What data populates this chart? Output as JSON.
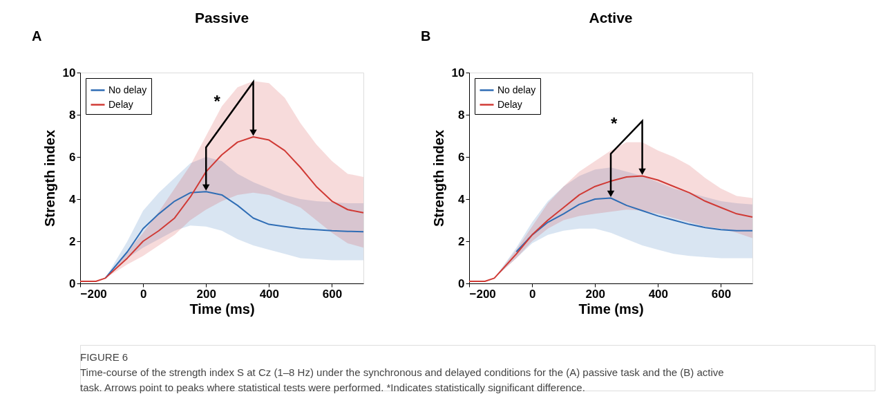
{
  "chart_data": [
    {
      "type": "line",
      "title": "Passive",
      "xlabel": "Time (ms)",
      "ylabel": "Strength index",
      "xlim": [
        -200,
        700
      ],
      "ylim": [
        0,
        10
      ],
      "xticks": [
        -200,
        0,
        200,
        400,
        600
      ],
      "yticks": [
        0,
        2,
        4,
        6,
        8,
        10
      ],
      "grid": false,
      "legend": "top left",
      "marker": "none",
      "line_style": "solid",
      "x": [
        -200,
        -150,
        -120,
        -50,
        0,
        50,
        100,
        150,
        200,
        250,
        300,
        350,
        400,
        450,
        500,
        550,
        600,
        650,
        700
      ],
      "series": [
        {
          "name": "No delay",
          "color": "#2f6db5",
          "values": [
            null,
            null,
            0.25,
            1.5,
            2.6,
            3.3,
            3.9,
            4.3,
            4.35,
            4.2,
            3.7,
            3.1,
            2.8,
            2.7,
            2.6,
            2.55,
            2.5,
            2.47,
            2.45
          ],
          "lower": [
            0.1,
            0.1,
            0.25,
            1.2,
            1.7,
            2.1,
            2.5,
            2.75,
            2.7,
            2.5,
            2.1,
            1.8,
            1.6,
            1.4,
            1.2,
            1.15,
            1.1,
            1.1,
            1.1
          ],
          "upper": [
            0.1,
            0.1,
            0.25,
            2.0,
            3.45,
            4.3,
            5.0,
            5.7,
            6.0,
            5.8,
            5.2,
            4.8,
            4.5,
            4.2,
            4.0,
            3.9,
            3.85,
            3.8,
            3.8
          ]
        },
        {
          "name": "Delay",
          "color": "#d03a35",
          "values": [
            0.1,
            0.1,
            0.25,
            1.2,
            2.0,
            2.5,
            3.1,
            4.1,
            5.3,
            6.1,
            6.7,
            6.95,
            6.8,
            6.3,
            5.5,
            4.6,
            3.9,
            3.5,
            3.35
          ],
          "lower": [
            0.1,
            0.1,
            0.25,
            0.9,
            1.3,
            1.8,
            2.3,
            3.0,
            3.5,
            3.9,
            4.2,
            4.3,
            4.2,
            3.9,
            3.6,
            3.0,
            2.4,
            1.9,
            1.7
          ],
          "upper": [
            0.1,
            0.1,
            0.25,
            1.5,
            2.4,
            3.4,
            4.5,
            5.6,
            7.0,
            8.4,
            9.3,
            9.6,
            9.5,
            8.8,
            7.6,
            6.6,
            5.8,
            5.2,
            5.05
          ]
        }
      ],
      "annotations": [
        "A",
        "*"
      ]
    },
    {
      "type": "line",
      "title": "Active",
      "xlabel": "Time (ms)",
      "ylabel": "Strength index",
      "xlim": [
        -200,
        700
      ],
      "ylim": [
        0,
        10
      ],
      "xticks": [
        -200,
        0,
        200,
        400,
        600
      ],
      "yticks": [
        0,
        2,
        4,
        6,
        8,
        10
      ],
      "grid": false,
      "legend": "top left",
      "marker": "none",
      "line_style": "solid",
      "x": [
        -200,
        -150,
        -120,
        -50,
        0,
        50,
        100,
        150,
        200,
        250,
        300,
        350,
        400,
        450,
        500,
        550,
        600,
        650,
        700
      ],
      "series": [
        {
          "name": "No delay",
          "color": "#2f6db5",
          "values": [
            null,
            null,
            null,
            1.5,
            2.3,
            2.9,
            3.3,
            3.75,
            4.0,
            4.05,
            3.7,
            3.45,
            3.2,
            3.0,
            2.8,
            2.65,
            2.55,
            2.5,
            2.5
          ],
          "lower": [
            0.1,
            0.1,
            0.25,
            1.2,
            1.9,
            2.3,
            2.5,
            2.6,
            2.6,
            2.4,
            2.1,
            1.8,
            1.6,
            1.4,
            1.3,
            1.25,
            1.2,
            1.2,
            1.2
          ],
          "upper": [
            0.1,
            0.1,
            0.25,
            1.7,
            2.9,
            3.9,
            4.6,
            5.1,
            5.4,
            5.5,
            5.3,
            5.1,
            4.8,
            4.5,
            4.3,
            4.1,
            3.9,
            3.8,
            3.75
          ]
        },
        {
          "name": "Delay",
          "color": "#d03a35",
          "values": [
            0.1,
            0.1,
            0.25,
            1.4,
            2.3,
            3.0,
            3.6,
            4.2,
            4.6,
            4.85,
            5.05,
            5.1,
            4.9,
            4.6,
            4.3,
            3.9,
            3.6,
            3.3,
            3.15
          ],
          "lower": [
            0.1,
            0.1,
            0.25,
            1.2,
            2.0,
            2.6,
            3.0,
            3.2,
            3.3,
            3.4,
            3.5,
            3.45,
            3.3,
            3.1,
            2.9,
            2.7,
            2.6,
            2.4,
            2.15
          ],
          "upper": [
            0.1,
            0.1,
            0.25,
            1.6,
            2.7,
            3.8,
            4.6,
            5.3,
            5.8,
            6.3,
            6.7,
            6.7,
            6.3,
            6.0,
            5.6,
            5.0,
            4.5,
            4.15,
            4.05
          ]
        }
      ],
      "annotations": [
        "B",
        "*",
        "FIGURE 6",
        "Time-course of the strength index S at Cz (1–8 Hz) under the synchronous and delayed conditions for the (A) passive task and the (B) active",
        "task. Arrows point to peaks where statistical tests were performed. *Indicates statistically significant difference."
      ]
    }
  ]
}
